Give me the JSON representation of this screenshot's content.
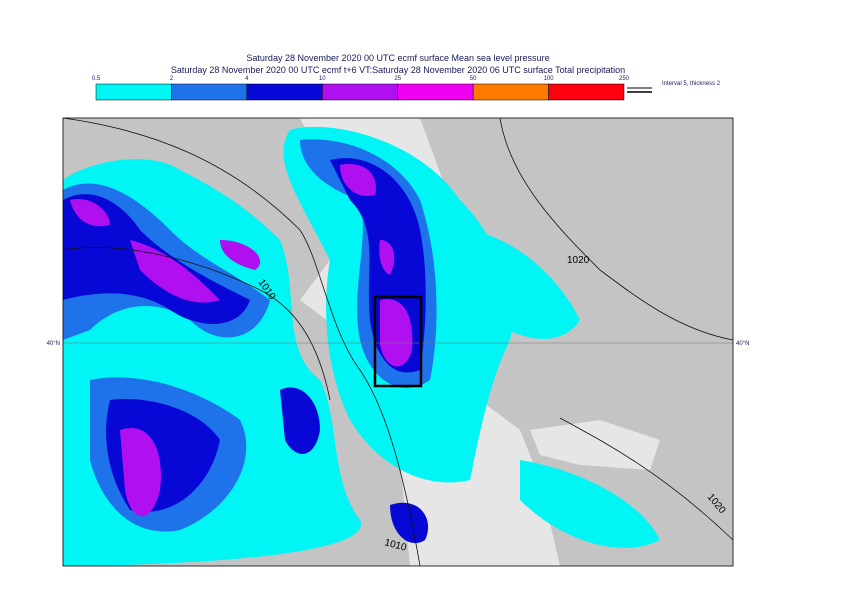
{
  "header": {
    "line1": "Saturday 28 November 2020 00 UTC ecmf surface  Mean sea level pressure",
    "line2": "Saturday 28 November 2020 00 UTC ecmf t+6 VT:Saturday 28 November 2020 06 UTC surface  Total precipitation"
  },
  "colorbar": {
    "ticks": [
      0.5,
      2,
      4,
      10,
      25,
      50,
      100,
      250
    ],
    "colors": [
      "#00f5f5",
      "#1f73ea",
      "#0808d6",
      "#b010f0",
      "#f000f0",
      "#ff7a00",
      "#ff0010"
    ]
  },
  "legend_note": "Interval 5, thickness 2",
  "contours": [
    "1020",
    "1010",
    "1020",
    "1010"
  ],
  "lat_labels": [
    "40°N",
    "40°N"
  ]
}
